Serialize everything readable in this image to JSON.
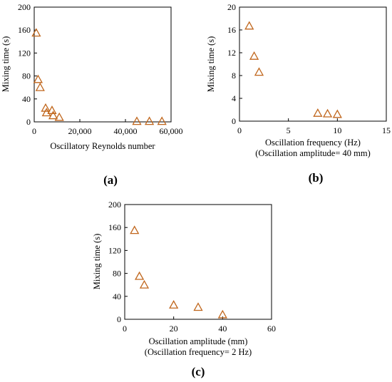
{
  "chart_data": [
    {
      "type": "scatter",
      "panel_label": "(a)",
      "xlabel": "Oscillatory Reynolds number",
      "ylabel": "Mixing time (s)",
      "xlim": [
        0,
        60000
      ],
      "ylim": [
        0,
        200
      ],
      "xticks": [
        "0",
        "20,000",
        "40,000",
        "60,000"
      ],
      "yticks": [
        "0",
        "40",
        "80",
        "120",
        "160",
        "200"
      ],
      "xtick_values": [
        0,
        20000,
        40000,
        60000
      ],
      "ytick_values": [
        0,
        40,
        80,
        120,
        160,
        200
      ],
      "marker_color": "#c0661c",
      "marker": "open-triangle",
      "points": [
        {
          "x": 900,
          "y": 155
        },
        {
          "x": 1700,
          "y": 74
        },
        {
          "x": 2600,
          "y": 60
        },
        {
          "x": 5000,
          "y": 24
        },
        {
          "x": 5400,
          "y": 16
        },
        {
          "x": 7800,
          "y": 20
        },
        {
          "x": 8300,
          "y": 11
        },
        {
          "x": 11000,
          "y": 8
        },
        {
          "x": 45000,
          "y": 1
        },
        {
          "x": 50500,
          "y": 1
        },
        {
          "x": 56000,
          "y": 1
        }
      ]
    },
    {
      "type": "scatter",
      "panel_label": "(b)",
      "xlabel": "Oscillation frequency (Hz)",
      "xlabel2": "(Oscillation amplitude= 40 mm)",
      "ylabel": "Mixing time (s)",
      "xlim": [
        0,
        15
      ],
      "ylim": [
        0,
        20
      ],
      "xticks": [
        "0",
        "5",
        "10",
        "15"
      ],
      "yticks": [
        "0",
        "4",
        "8",
        "12",
        "16",
        "20"
      ],
      "xtick_values": [
        0,
        5,
        10,
        15
      ],
      "ytick_values": [
        0,
        4,
        8,
        12,
        16,
        20
      ],
      "marker_color": "#c0661c",
      "marker": "open-triangle",
      "points": [
        {
          "x": 1,
          "y": 16.7
        },
        {
          "x": 1.5,
          "y": 11.4
        },
        {
          "x": 2,
          "y": 8.6
        },
        {
          "x": 8,
          "y": 1.4
        },
        {
          "x": 9,
          "y": 1.3
        },
        {
          "x": 10,
          "y": 1.2
        }
      ]
    },
    {
      "type": "scatter",
      "panel_label": "(c)",
      "xlabel": "Oscillation amplitude (mm)",
      "xlabel2": "(Oscillation frequency= 2 Hz)",
      "ylabel": "Mixing time (s)",
      "xlim": [
        0,
        60
      ],
      "ylim": [
        0,
        200
      ],
      "xticks": [
        "0",
        "20",
        "40",
        "60"
      ],
      "yticks": [
        "0",
        "40",
        "80",
        "120",
        "160",
        "200"
      ],
      "xtick_values": [
        0,
        20,
        40,
        60
      ],
      "ytick_values": [
        0,
        40,
        80,
        120,
        160,
        200
      ],
      "marker_color": "#c0661c",
      "marker": "open-triangle",
      "points": [
        {
          "x": 4,
          "y": 155
        },
        {
          "x": 6,
          "y": 75
        },
        {
          "x": 8,
          "y": 60
        },
        {
          "x": 20,
          "y": 25
        },
        {
          "x": 30,
          "y": 21
        },
        {
          "x": 40,
          "y": 8
        }
      ]
    }
  ]
}
